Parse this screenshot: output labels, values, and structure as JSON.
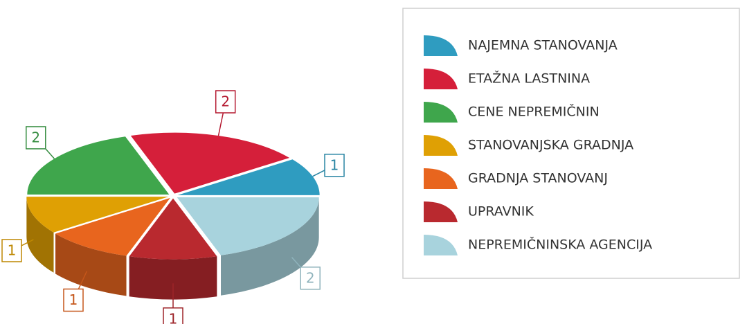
{
  "chart_data": {
    "type": "pie",
    "categories": [
      "NAJEMNA STANOVANJA",
      "ETAŽNA LASTNINA",
      "CENE NEPREMIČNIN",
      "STANOVANJSKA GRADNJA",
      "GRADNJA STANOVANJ",
      "UPRAVNIK",
      "NEPREMIČNINSKA AGENCIJA"
    ],
    "values": [
      1,
      2,
      2,
      1,
      1,
      1,
      2
    ],
    "colors": [
      "#2f9cc0",
      "#d51f3a",
      "#3fa64c",
      "#dfa004",
      "#e8651e",
      "#b9292f",
      "#a8d3dd"
    ],
    "legend": "right"
  }
}
